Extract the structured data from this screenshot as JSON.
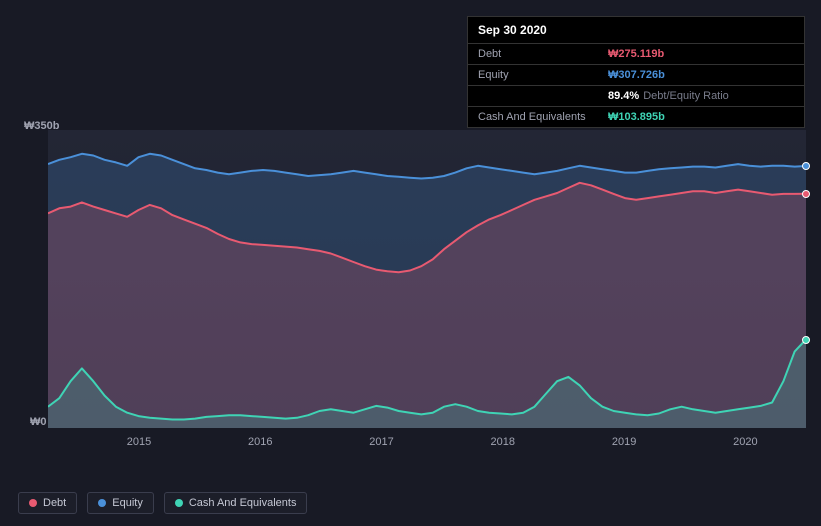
{
  "tooltip": {
    "date": "Sep 30 2020",
    "rows": [
      {
        "label": "Debt",
        "value": "₩275.119b",
        "color": "#e85a71"
      },
      {
        "label": "Equity",
        "value": "₩307.726b",
        "color": "#4a90d9"
      },
      {
        "label": "",
        "value": "89.4%",
        "suffix": "Debt/Equity Ratio",
        "color": "#ffffff"
      },
      {
        "label": "Cash And Equivalents",
        "value": "₩103.895b",
        "color": "#3fd4b5"
      }
    ]
  },
  "chart": {
    "type": "area",
    "background_top": "#232635",
    "background_bottom": "#1d1f2c",
    "ylim": [
      0,
      350
    ],
    "y_top_label": "₩350b",
    "y_bottom_label": "₩0",
    "x_ticks": [
      "2015",
      "2016",
      "2017",
      "2018",
      "2019",
      "2020"
    ],
    "series": [
      {
        "name": "Equity",
        "color": "#4a90d9",
        "fill": "rgba(74,144,217,0.22)",
        "line_width": 2,
        "values": [
          310,
          315,
          318,
          322,
          320,
          315,
          312,
          308,
          318,
          322,
          320,
          315,
          310,
          305,
          303,
          300,
          298,
          300,
          302,
          303,
          302,
          300,
          298,
          296,
          297,
          298,
          300,
          302,
          300,
          298,
          296,
          295,
          294,
          293,
          294,
          296,
          300,
          305,
          308,
          306,
          304,
          302,
          300,
          298,
          300,
          302,
          305,
          308,
          306,
          304,
          302,
          300,
          300,
          302,
          304,
          305,
          306,
          307,
          307,
          306,
          308,
          310,
          308,
          307,
          308,
          308,
          307,
          307.7
        ],
        "end_dot": true
      },
      {
        "name": "Debt",
        "color": "#e85a71",
        "fill": "rgba(232,90,113,0.22)",
        "line_width": 2,
        "values": [
          252,
          258,
          260,
          265,
          260,
          256,
          252,
          248,
          256,
          262,
          258,
          250,
          245,
          240,
          235,
          228,
          222,
          218,
          216,
          215,
          214,
          213,
          212,
          210,
          208,
          205,
          200,
          195,
          190,
          186,
          184,
          183,
          185,
          190,
          198,
          210,
          220,
          230,
          238,
          245,
          250,
          256,
          262,
          268,
          272,
          276,
          282,
          288,
          285,
          280,
          275,
          270,
          268,
          270,
          272,
          274,
          276,
          278,
          278,
          276,
          278,
          280,
          278,
          276,
          274,
          275,
          275,
          275.1
        ],
        "end_dot": true
      },
      {
        "name": "Cash And Equivalents",
        "color": "#3fd4b5",
        "fill": "rgba(63,212,181,0.20)",
        "line_width": 2,
        "values": [
          25,
          35,
          55,
          70,
          55,
          38,
          25,
          18,
          14,
          12,
          11,
          10,
          10,
          11,
          13,
          14,
          15,
          15,
          14,
          13,
          12,
          11,
          12,
          15,
          20,
          22,
          20,
          18,
          22,
          26,
          24,
          20,
          18,
          16,
          18,
          25,
          28,
          25,
          20,
          18,
          17,
          16,
          18,
          25,
          40,
          55,
          60,
          50,
          35,
          25,
          20,
          18,
          16,
          15,
          17,
          22,
          25,
          22,
          20,
          18,
          20,
          22,
          24,
          26,
          30,
          55,
          90,
          103.9
        ],
        "end_dot": true
      }
    ]
  },
  "legend": {
    "items": [
      {
        "label": "Debt",
        "color": "#e85a71"
      },
      {
        "label": "Equity",
        "color": "#4a90d9"
      },
      {
        "label": "Cash And Equivalents",
        "color": "#3fd4b5"
      }
    ]
  }
}
